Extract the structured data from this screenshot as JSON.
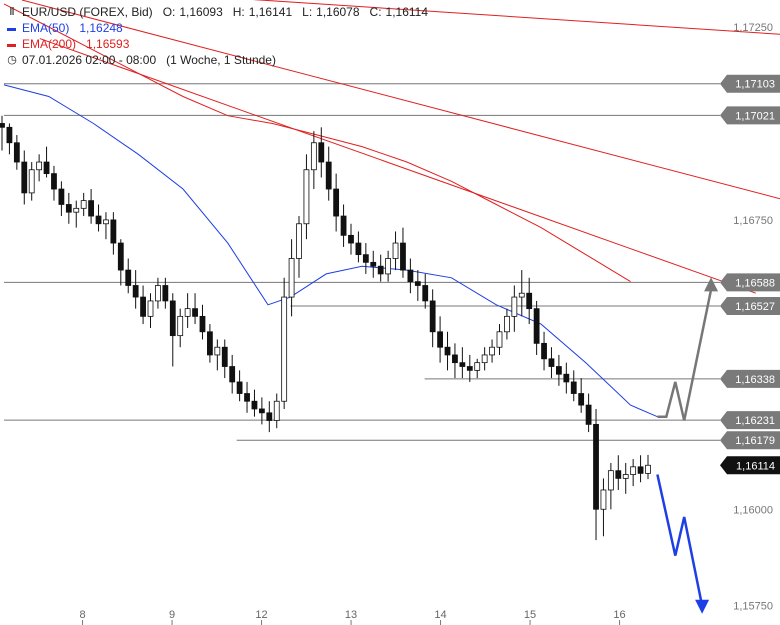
{
  "header": {
    "instrument": "EUR/USD (FOREX, Bid)",
    "ohlc": [
      {
        "label": "O:",
        "value": "1,16093"
      },
      {
        "label": "H:",
        "value": "1,16141"
      },
      {
        "label": "L:",
        "value": "1,16078"
      },
      {
        "label": "C:",
        "value": "1,16114"
      }
    ],
    "ema50": {
      "label": "EMA(50)",
      "value": "1,16248",
      "color": "#1e3ee6"
    },
    "ema200": {
      "label": "EMA(200)",
      "value": "1,16593",
      "color": "#e02020"
    },
    "period": "07.01.2026 02:00 - 08:00",
    "period_note": "(1 Woche, 1 Stunde)"
  },
  "chart_data": {
    "type": "candlestick",
    "instrument": "EUR/USD",
    "timeframe": "1 Stunde",
    "ylim": [
      1.157,
      1.1732
    ],
    "y_ticks": [
      "1,17250",
      "1,16750",
      "1,16000",
      "1,15750"
    ],
    "x_ticks": [
      "8",
      "9",
      "12",
      "13",
      "14",
      "15",
      "16"
    ],
    "horizontal_levels": [
      {
        "value": 1.17103,
        "label": "1,17103",
        "start_day": 0
      },
      {
        "value": 1.17021,
        "label": "1,17021",
        "start_day": 0
      },
      {
        "value": 1.16588,
        "label": "1,16588",
        "start_day": 0
      },
      {
        "value": 1.16527,
        "label": "1,16527",
        "start_day": 3.2
      },
      {
        "value": 1.16338,
        "label": "1,16338",
        "start_day": 4.7
      },
      {
        "value": 1.16231,
        "label": "1,16231",
        "start_day": 0
      },
      {
        "value": 1.16179,
        "label": "1,16179",
        "start_day": 2.6
      }
    ],
    "last_price": {
      "value": 1.16114,
      "label": "1,16114"
    },
    "trend_lines": [
      {
        "from": [
          0.9,
          1.1735
        ],
        "to": [
          8.75,
          1.1723
        ]
      },
      {
        "from": [
          0.2,
          1.1732
        ],
        "to": [
          8.75,
          1.168
        ]
      },
      {
        "from": [
          0.4,
          1.1722
        ],
        "to": [
          8.4,
          1.1656
        ]
      }
    ],
    "ema200": [
      [
        0,
        1.1731
      ],
      [
        0.5,
        1.1725
      ],
      [
        1,
        1.1719
      ],
      [
        1.5,
        1.1713
      ],
      [
        2,
        1.1707
      ],
      [
        2.5,
        1.1702
      ],
      [
        3,
        1.17
      ],
      [
        3.5,
        1.1697
      ],
      [
        4,
        1.1694
      ],
      [
        4.5,
        1.169
      ],
      [
        5,
        1.1685
      ],
      [
        5.5,
        1.1679
      ],
      [
        6,
        1.1673
      ],
      [
        6.5,
        1.1666
      ],
      [
        7,
        1.1659
      ]
    ],
    "ema50": [
      [
        0,
        1.171
      ],
      [
        0.5,
        1.1707
      ],
      [
        1,
        1.17
      ],
      [
        1.5,
        1.1692
      ],
      [
        2,
        1.1683
      ],
      [
        2.5,
        1.1669
      ],
      [
        2.95,
        1.1653
      ],
      [
        3.2,
        1.1655
      ],
      [
        3.6,
        1.1661
      ],
      [
        4,
        1.1663
      ],
      [
        4.5,
        1.1662
      ],
      [
        5,
        1.166
      ],
      [
        5.5,
        1.1653
      ],
      [
        6,
        1.1648
      ],
      [
        6.5,
        1.1638
      ],
      [
        7,
        1.1627
      ],
      [
        7.3,
        1.1624
      ]
    ],
    "scenario_up": [
      [
        7.3,
        1.1624
      ],
      [
        7.4,
        1.1624
      ],
      [
        7.5,
        1.1633
      ],
      [
        7.6,
        1.1623
      ],
      [
        7.9,
        1.1657
      ]
    ],
    "scenario_down": [
      [
        7.3,
        1.1609
      ],
      [
        7.5,
        1.1588
      ],
      [
        7.6,
        1.1598
      ],
      [
        7.8,
        1.1575
      ]
    ],
    "candles": [
      [
        1.17,
        1.1702,
        1.1693,
        1.1699
      ],
      [
        1.1699,
        1.17,
        1.1692,
        1.1695
      ],
      [
        1.1695,
        1.1697,
        1.1688,
        1.169
      ],
      [
        1.169,
        1.1693,
        1.1679,
        1.1682
      ],
      [
        1.1682,
        1.169,
        1.168,
        1.1688
      ],
      [
        1.1688,
        1.1692,
        1.1685,
        1.169
      ],
      [
        1.169,
        1.1694,
        1.1686,
        1.1687
      ],
      [
        1.1687,
        1.1689,
        1.168,
        1.1683
      ],
      [
        1.1683,
        1.1685,
        1.1676,
        1.1679
      ],
      [
        1.1679,
        1.1682,
        1.1674,
        1.1677
      ],
      [
        1.1677,
        1.168,
        1.1673,
        1.1678
      ],
      [
        1.1678,
        1.1682,
        1.1676,
        1.168
      ],
      [
        1.168,
        1.1683,
        1.1674,
        1.1676
      ],
      [
        1.1676,
        1.1679,
        1.1672,
        1.1674
      ],
      [
        1.1674,
        1.1677,
        1.167,
        1.1675
      ],
      [
        1.1675,
        1.1677,
        1.1666,
        1.1669
      ],
      [
        1.1669,
        1.167,
        1.1658,
        1.1662
      ],
      [
        1.1662,
        1.1665,
        1.1656,
        1.1658
      ],
      [
        1.1658,
        1.1662,
        1.1652,
        1.1655
      ],
      [
        1.1655,
        1.1658,
        1.1648,
        1.165
      ],
      [
        1.165,
        1.1656,
        1.1647,
        1.1654
      ],
      [
        1.1654,
        1.166,
        1.1652,
        1.1658
      ],
      [
        1.1658,
        1.166,
        1.1652,
        1.1654
      ],
      [
        1.1654,
        1.1656,
        1.1637,
        1.1645
      ],
      [
        1.1645,
        1.1652,
        1.1642,
        1.165
      ],
      [
        1.165,
        1.1656,
        1.1647,
        1.1652
      ],
      [
        1.1652,
        1.1656,
        1.1648,
        1.165
      ],
      [
        1.165,
        1.1653,
        1.1644,
        1.1646
      ],
      [
        1.1646,
        1.1648,
        1.1638,
        1.164
      ],
      [
        1.164,
        1.1644,
        1.1636,
        1.1642
      ],
      [
        1.1642,
        1.1644,
        1.1634,
        1.1637
      ],
      [
        1.1637,
        1.164,
        1.163,
        1.1633
      ],
      [
        1.1633,
        1.1636,
        1.1628,
        1.163
      ],
      [
        1.163,
        1.1633,
        1.1625,
        1.1628
      ],
      [
        1.1628,
        1.1631,
        1.1624,
        1.1626
      ],
      [
        1.1626,
        1.1629,
        1.1622,
        1.1625
      ],
      [
        1.1625,
        1.1628,
        1.162,
        1.1623
      ],
      [
        1.1623,
        1.163,
        1.1621,
        1.1628
      ],
      [
        1.1628,
        1.166,
        1.1626,
        1.1655
      ],
      [
        1.1655,
        1.167,
        1.165,
        1.1665
      ],
      [
        1.1665,
        1.1676,
        1.166,
        1.1674
      ],
      [
        1.1674,
        1.1692,
        1.167,
        1.1688
      ],
      [
        1.1688,
        1.1698,
        1.1683,
        1.1695
      ],
      [
        1.1695,
        1.1699,
        1.1686,
        1.169
      ],
      [
        1.169,
        1.1694,
        1.168,
        1.1683
      ],
      [
        1.1683,
        1.1687,
        1.1672,
        1.1676
      ],
      [
        1.1676,
        1.1679,
        1.1668,
        1.1671
      ],
      [
        1.1671,
        1.1674,
        1.1666,
        1.1669
      ],
      [
        1.1669,
        1.1672,
        1.1664,
        1.1666
      ],
      [
        1.1666,
        1.1669,
        1.1661,
        1.1664
      ],
      [
        1.1664,
        1.1667,
        1.166,
        1.1663
      ],
      [
        1.1663,
        1.1666,
        1.1659,
        1.1661
      ],
      [
        1.1661,
        1.1667,
        1.1659,
        1.1665
      ],
      [
        1.1665,
        1.1672,
        1.1662,
        1.1669
      ],
      [
        1.1669,
        1.1673,
        1.166,
        1.1662
      ],
      [
        1.1662,
        1.1665,
        1.1656,
        1.1659
      ],
      [
        1.1659,
        1.1662,
        1.1654,
        1.1658
      ],
      [
        1.1658,
        1.1661,
        1.1652,
        1.1654
      ],
      [
        1.1654,
        1.1657,
        1.1642,
        1.1646
      ],
      [
        1.1646,
        1.165,
        1.1638,
        1.1642
      ],
      [
        1.1642,
        1.1646,
        1.1636,
        1.164
      ],
      [
        1.164,
        1.1643,
        1.1634,
        1.1638
      ],
      [
        1.1638,
        1.1642,
        1.1634,
        1.1637
      ],
      [
        1.1637,
        1.164,
        1.1633,
        1.1636
      ],
      [
        1.1636,
        1.1639,
        1.1634,
        1.1638
      ],
      [
        1.1638,
        1.1642,
        1.1636,
        1.164
      ],
      [
        1.164,
        1.1644,
        1.1638,
        1.1642
      ],
      [
        1.1642,
        1.1648,
        1.164,
        1.1646
      ],
      [
        1.1646,
        1.1652,
        1.1644,
        1.165
      ],
      [
        1.165,
        1.1658,
        1.1646,
        1.1655
      ],
      [
        1.1655,
        1.1662,
        1.165,
        1.1656
      ],
      [
        1.1656,
        1.166,
        1.1648,
        1.1652
      ],
      [
        1.1652,
        1.1654,
        1.164,
        1.1643
      ],
      [
        1.1643,
        1.1646,
        1.1636,
        1.1639
      ],
      [
        1.1639,
        1.1642,
        1.1634,
        1.1637
      ],
      [
        1.1637,
        1.164,
        1.1632,
        1.1635
      ],
      [
        1.1635,
        1.1638,
        1.163,
        1.1633
      ],
      [
        1.1633,
        1.1636,
        1.1628,
        1.163
      ],
      [
        1.163,
        1.1634,
        1.1625,
        1.1627
      ],
      [
        1.1627,
        1.163,
        1.162,
        1.1622
      ],
      [
        1.1622,
        1.1626,
        1.1592,
        1.16
      ],
      [
        1.16,
        1.1608,
        1.1593,
        1.1605
      ],
      [
        1.1605,
        1.1612,
        1.16,
        1.161
      ],
      [
        1.161,
        1.1614,
        1.1605,
        1.1608
      ],
      [
        1.1608,
        1.1612,
        1.1604,
        1.1609
      ],
      [
        1.1609,
        1.1613,
        1.1606,
        1.1611
      ],
      [
        1.1611,
        1.1614,
        1.1607,
        1.16093
      ],
      [
        1.16093,
        1.16141,
        1.16078,
        1.16114
      ]
    ]
  }
}
